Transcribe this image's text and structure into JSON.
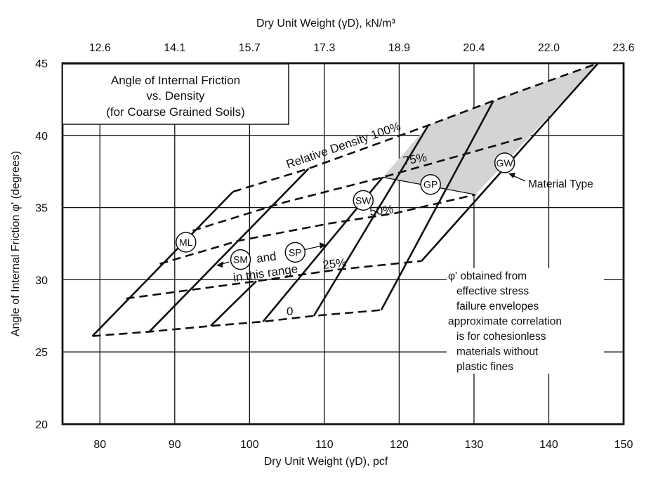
{
  "chart_data": {
    "type": "line",
    "title": [
      "Angle of Internal Friction",
      "vs. Density",
      "(for Coarse Grained Soils)"
    ],
    "xlabel": "Dry Unit Weight (γD), pcf",
    "xlabel_top": "Dry Unit Weight (γD), kN/m³",
    "ylabel": "Angle of Internal Friction φ' (degrees)",
    "xlim": [
      75,
      150
    ],
    "ylim": [
      20,
      45
    ],
    "grid": true,
    "x_ticks": [
      80,
      90,
      100,
      110,
      120,
      130,
      140,
      150
    ],
    "x_tick_labels": [
      "80",
      "90",
      "100",
      "110",
      "120",
      "130",
      "140",
      "150"
    ],
    "top_ticks": [
      80,
      90,
      100,
      110,
      120,
      130,
      140,
      150
    ],
    "top_tick_labels": [
      "12.6",
      "14.1",
      "15.7",
      "17.3",
      "18.9",
      "20.4",
      "22.0",
      "23.6"
    ],
    "y_ticks": [
      20,
      25,
      30,
      35,
      40,
      45
    ],
    "y_tick_labels": [
      "20",
      "25",
      "30",
      "35",
      "40",
      "45"
    ],
    "relative_density_series": [
      {
        "name": "0",
        "style": "dashed",
        "points": [
          [
            79,
            26.1
          ],
          [
            86.6,
            26.4
          ],
          [
            94.8,
            26.8
          ],
          [
            101.8,
            27.1
          ],
          [
            108.6,
            27.5
          ],
          [
            117.6,
            27.9
          ]
        ]
      },
      {
        "name": "25%",
        "style": "dashed",
        "points": [
          [
            83.5,
            28.7
          ],
          [
            100.9,
            29.9
          ],
          [
            111.7,
            30.7
          ],
          [
            123.0,
            31.3
          ]
        ]
      },
      {
        "name": "50%",
        "style": "dashed",
        "points": [
          [
            88.0,
            31.1
          ],
          [
            98.5,
            32.7
          ],
          [
            110.7,
            33.9
          ],
          [
            119.4,
            34.6
          ],
          [
            130.2,
            35.9
          ]
        ]
      },
      {
        "name": "75%",
        "style": "dashed",
        "points": [
          [
            92.4,
            33.4
          ],
          [
            104.2,
            35.3
          ],
          [
            117.8,
            37.1
          ],
          [
            137.0,
            39.9
          ]
        ]
      },
      {
        "name": "Relative Density 100%",
        "style": "dashed",
        "points": [
          [
            97.8,
            36.1
          ],
          [
            107.9,
            37.7
          ],
          [
            123.9,
            40.7
          ],
          [
            132.6,
            42.4
          ],
          [
            146.6,
            45.0
          ]
        ]
      }
    ],
    "material_lines": [
      {
        "name": "ML",
        "points": [
          [
            79,
            26.1
          ],
          [
            97.8,
            36.1
          ]
        ]
      },
      {
        "name": "SM-line",
        "points": [
          [
            86.6,
            26.4
          ],
          [
            107.9,
            37.7
          ]
        ]
      },
      {
        "name": "short-line",
        "points": [
          [
            94.8,
            26.8
          ],
          [
            100.9,
            29.9
          ]
        ]
      },
      {
        "name": "SW-line",
        "points": [
          [
            101.8,
            27.1
          ],
          [
            117.8,
            37.1
          ]
        ]
      },
      {
        "name": "GP-line-left",
        "points": [
          [
            108.6,
            27.5
          ],
          [
            123.9,
            40.7
          ]
        ]
      },
      {
        "name": "GP-line-right",
        "points": [
          [
            117.6,
            27.9
          ],
          [
            132.6,
            42.4
          ]
        ]
      },
      {
        "name": "GW",
        "points": [
          [
            123.0,
            31.3
          ],
          [
            146.6,
            45.0
          ]
        ]
      }
    ],
    "shaded_region": [
      [
        117.8,
        37.1
      ],
      [
        123.9,
        40.7
      ],
      [
        132.6,
        42.4
      ],
      [
        146.6,
        45.0
      ],
      [
        130.2,
        35.9
      ]
    ],
    "gp_separator": [
      [
        117.8,
        37.1
      ],
      [
        130.2,
        35.9
      ]
    ],
    "material_markers": [
      {
        "label": "ML",
        "x": 91.5,
        "y": 32.6
      },
      {
        "label": "SM",
        "x": 98.8,
        "y": 31.4
      },
      {
        "label": "SP",
        "x": 106.1,
        "y": 31.9
      },
      {
        "label": "SW",
        "x": 115.2,
        "y": 35.5
      },
      {
        "label": "GP",
        "x": 124.2,
        "y": 36.6
      },
      {
        "label": "GW",
        "x": 134.1,
        "y": 38.1
      }
    ],
    "annotations": {
      "and": "and",
      "in_this_range": "in this range",
      "material_type": "Material Type",
      "label_0": "0",
      "label_25": "25%",
      "label_50": "50%",
      "label_75": "75%",
      "label_100": "Relative Density 100%",
      "note_lines": [
        "φ' obtained from",
        "effective stress",
        "failure envelopes",
        "approximate correlation",
        "is for cohesionless",
        "materials without",
        "plastic fines"
      ]
    }
  }
}
